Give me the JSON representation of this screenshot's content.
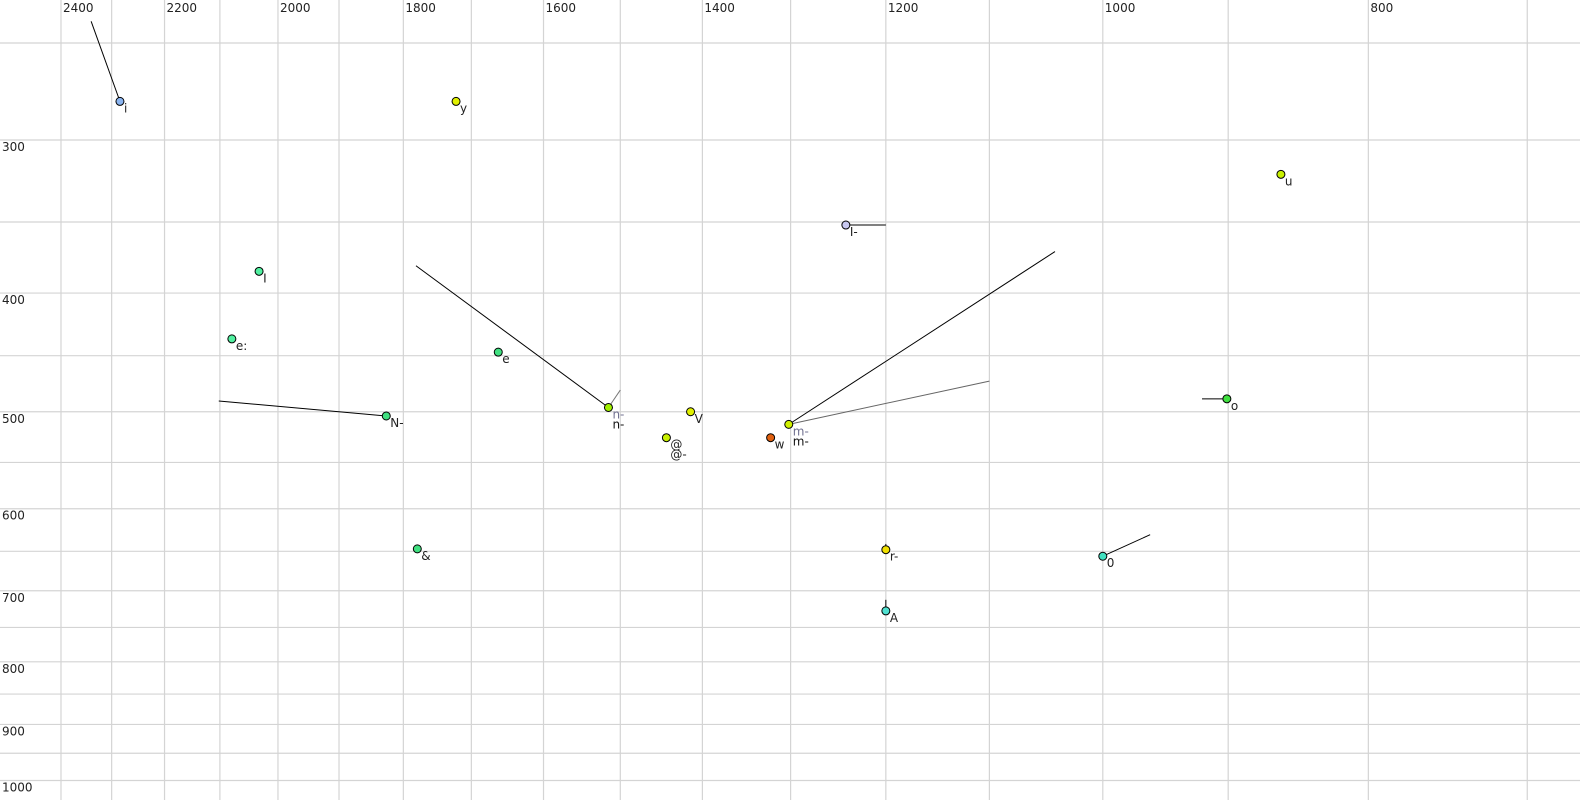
{
  "chart_data": {
    "type": "scatter",
    "title": "",
    "xlabel": "",
    "ylabel": "",
    "x_scale": "log",
    "y_scale": "log",
    "x_reversed": true,
    "xlim": [
      2400,
      680
    ],
    "ylim": [
      250,
      1000
    ],
    "grid": true,
    "x_gridlines": [
      2400,
      2300,
      2200,
      2100,
      2000,
      1900,
      1800,
      1700,
      1600,
      1500,
      1400,
      1300,
      1200,
      1100,
      1000,
      900,
      800,
      700
    ],
    "y_gridlines": [
      250,
      300,
      350,
      400,
      450,
      500,
      550,
      600,
      650,
      700,
      750,
      800,
      850,
      900,
      950,
      1000
    ],
    "x_tick_labels": [
      "2400",
      "2200",
      "2000",
      "1800",
      "1600",
      "1400",
      "1200",
      "1000",
      "800"
    ],
    "y_tick_labels": [
      "300",
      "400",
      "500",
      "600",
      "700",
      "800",
      "900",
      "1000"
    ],
    "points": [
      {
        "labels": [
          {
            "text": "i",
            "color": "#222222"
          }
        ],
        "f2": 2284,
        "f1": 279,
        "color": "#8ab4f0",
        "tracks": [
          {
            "to": [
              2340,
              240
            ],
            "color": "#000000"
          }
        ]
      },
      {
        "labels": [
          {
            "text": "y",
            "color": "#222222"
          }
        ],
        "f2": 1722,
        "f1": 279,
        "color": "#e0f000",
        "tracks": []
      },
      {
        "labels": [
          {
            "text": "u",
            "color": "#222222"
          }
        ],
        "f2": 861,
        "f1": 320,
        "color": "#c8f000",
        "tracks": []
      },
      {
        "labels": [
          {
            "text": "I-",
            "color": "#222222"
          }
        ],
        "f2": 1241,
        "f1": 352,
        "color": "#c8c8f0",
        "tracks": [
          {
            "to": [
              1200,
              352
            ],
            "color": "#000000"
          }
        ]
      },
      {
        "labels": [
          {
            "text": "I",
            "color": "#222222"
          }
        ],
        "f2": 2032,
        "f1": 384,
        "color": "#50f0a0",
        "tracks": []
      },
      {
        "labels": [
          {
            "text": "e:",
            "color": "#222222"
          }
        ],
        "f2": 2079,
        "f1": 436,
        "color": "#50f0a0",
        "tracks": []
      },
      {
        "labels": [
          {
            "text": "e",
            "color": "#222222"
          }
        ],
        "f2": 1662,
        "f1": 447,
        "color": "#40e080",
        "tracks": []
      },
      {
        "labels": [
          {
            "text": "N-",
            "color": "#222222"
          }
        ],
        "f2": 1826,
        "f1": 504,
        "color": "#40e080",
        "tracks": [
          {
            "to": [
              2102,
              490
            ],
            "color": "#000000"
          }
        ]
      },
      {
        "labels": [
          {
            "text": "n-",
            "color": "#707090"
          },
          {
            "text": "n-",
            "color": "#111111"
          }
        ],
        "f2": 1515,
        "f1": 496,
        "color": "#a0f000",
        "tracks": [
          {
            "to": [
              1781,
              380
            ],
            "color": "#000000"
          },
          {
            "to": [
              1500,
              480
            ],
            "color": "#777777"
          }
        ]
      },
      {
        "labels": [
          {
            "text": "V",
            "color": "#222222"
          }
        ],
        "f2": 1414,
        "f1": 500,
        "color": "#e0f000",
        "tracks": []
      },
      {
        "labels": [
          {
            "text": "@",
            "color": "#222222"
          },
          {
            "text": "@-",
            "color": "#222222"
          }
        ],
        "f2": 1443,
        "f1": 525,
        "color": "#c8f000",
        "tracks": []
      },
      {
        "labels": [
          {
            "text": "w",
            "color": "#222222"
          }
        ],
        "f2": 1322,
        "f1": 525,
        "color": "#e06010",
        "tracks": []
      },
      {
        "labels": [
          {
            "text": "m-",
            "color": "#707090"
          },
          {
            "text": "m-",
            "color": "#111111"
          }
        ],
        "f2": 1302,
        "f1": 512,
        "color": "#d0f000",
        "tracks": [
          {
            "to": [
              1041,
              370
            ],
            "color": "#000000"
          },
          {
            "to": [
              1100,
              472
            ],
            "color": "#666666"
          }
        ]
      },
      {
        "labels": [
          {
            "text": "o",
            "color": "#222222"
          }
        ],
        "f2": 901,
        "f1": 488,
        "color": "#40e040",
        "tracks": [
          {
            "to": [
              920,
              488
            ],
            "color": "#000000"
          }
        ]
      },
      {
        "labels": [
          {
            "text": "&",
            "color": "#222222"
          }
        ],
        "f2": 1779,
        "f1": 647,
        "color": "#40e080",
        "tracks": []
      },
      {
        "labels": [
          {
            "text": "r-",
            "color": "#222222"
          }
        ],
        "f2": 1200,
        "f1": 648,
        "color": "#f0e000",
        "tracks": [
          {
            "to": [
              1200,
              641
            ],
            "color": "#000000"
          }
        ]
      },
      {
        "labels": [
          {
            "text": "0",
            "color": "#222222"
          }
        ],
        "f2": 1000,
        "f1": 656,
        "color": "#40e0c0",
        "tracks": [
          {
            "to": [
              961,
              630
            ],
            "color": "#000000"
          }
        ]
      },
      {
        "labels": [
          {
            "text": "A",
            "color": "#222222"
          }
        ],
        "f2": 1200,
        "f1": 727,
        "color": "#50e0d0",
        "tracks": [
          {
            "to": [
              1200,
              712
            ],
            "color": "#000000"
          }
        ]
      }
    ]
  }
}
